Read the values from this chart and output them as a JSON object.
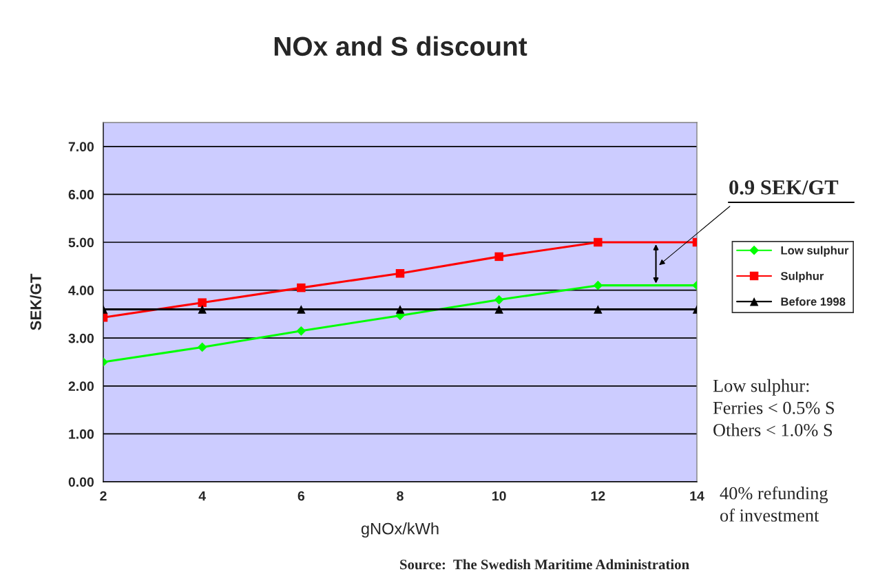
{
  "chart_data": {
    "type": "line",
    "title": "NOx and S discount",
    "xlabel": "gNOx/kWh",
    "ylabel": "SEK/GT",
    "x": [
      2,
      4,
      6,
      8,
      10,
      12,
      14
    ],
    "xlim": [
      2,
      14
    ],
    "xticks": [
      2,
      4,
      6,
      8,
      10,
      12,
      14
    ],
    "ylim": [
      0,
      7.5
    ],
    "yticks": [
      {
        "value": 0,
        "label": "0.00"
      },
      {
        "value": 1,
        "label": "1.00"
      },
      {
        "value": 2,
        "label": "2.00"
      },
      {
        "value": 3,
        "label": "3.00"
      },
      {
        "value": 4,
        "label": "4.00"
      },
      {
        "value": 5,
        "label": "5.00"
      },
      {
        "value": 6,
        "label": "6.00"
      },
      {
        "value": 7,
        "label": "7.00"
      }
    ],
    "grid": "y",
    "legend": "right",
    "line_style": "solid",
    "series": [
      {
        "name": "Low sulphur",
        "color": "#00ff00",
        "marker": "diamond",
        "values": [
          2.5,
          2.81,
          3.15,
          3.47,
          3.8,
          4.1,
          4.1
        ]
      },
      {
        "name": "Sulphur",
        "color": "#ff0000",
        "marker": "square",
        "values": [
          3.43,
          3.74,
          4.05,
          4.35,
          4.7,
          5.0,
          5.0
        ]
      },
      {
        "name": "Before 1998",
        "color": "#000000",
        "marker": "triangle",
        "values": [
          3.6,
          3.6,
          3.6,
          3.6,
          3.6,
          3.6,
          3.6
        ]
      }
    ],
    "annotations": [
      "0.9 SEK/GT",
      "Low sulphur:\nFerries < 0.5% S\nOthers < 1.0% S",
      "40% refunding\nof investment",
      "Source:  The Swedish Maritime Administration"
    ]
  }
}
